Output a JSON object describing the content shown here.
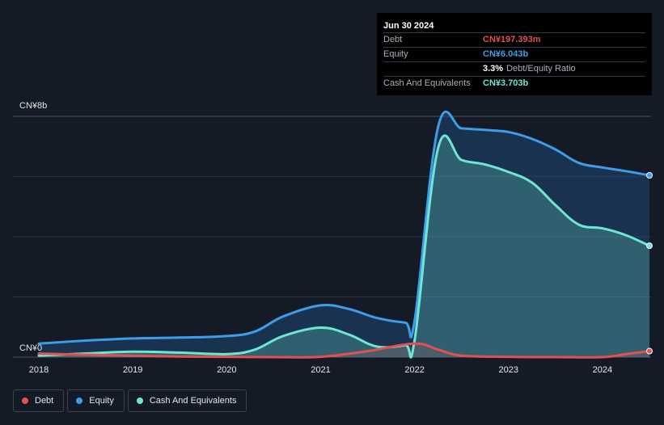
{
  "tooltip": {
    "date": "Jun 30 2024",
    "rows": [
      {
        "label": "Debt",
        "value": "CN¥197.393m",
        "color": "#e64f4f"
      },
      {
        "label": "Equity",
        "value": "CN¥6.043b",
        "color": "#3d9de8"
      }
    ],
    "ratio": {
      "value": "3.3%",
      "label": "Debt/Equity Ratio"
    },
    "cash": {
      "label": "Cash And Equivalents",
      "value": "CN¥3.703b",
      "color": "#6ee6d2"
    }
  },
  "axis": {
    "y_top_label": "CN¥8b",
    "y_zero_label": "CN¥0"
  },
  "legend": [
    {
      "label": "Debt",
      "color": "#e64f4f"
    },
    {
      "label": "Equity",
      "color": "#3d9de8"
    },
    {
      "label": "Cash And Equivalents",
      "color": "#6ee6d2"
    }
  ],
  "chart_data": {
    "type": "area",
    "x_ticks": [
      "2018",
      "2019",
      "2020",
      "2021",
      "2022",
      "2023",
      "2024"
    ],
    "ylim": [
      0,
      8
    ],
    "yunit": "CN¥ billions",
    "grid": true,
    "series": [
      {
        "name": "Equity",
        "color": "#3d9de8",
        "points": [
          [
            2018.0,
            0.45
          ],
          [
            2018.5,
            0.55
          ],
          [
            2019.0,
            0.62
          ],
          [
            2019.5,
            0.65
          ],
          [
            2020.0,
            0.7
          ],
          [
            2020.3,
            0.85
          ],
          [
            2020.6,
            1.35
          ],
          [
            2021.0,
            1.72
          ],
          [
            2021.3,
            1.6
          ],
          [
            2021.6,
            1.3
          ],
          [
            2021.9,
            1.15
          ],
          [
            2022.0,
            1.2
          ],
          [
            2022.25,
            7.65
          ],
          [
            2022.5,
            7.6
          ],
          [
            2022.75,
            7.55
          ],
          [
            2023.0,
            7.48
          ],
          [
            2023.25,
            7.25
          ],
          [
            2023.5,
            6.9
          ],
          [
            2023.75,
            6.45
          ],
          [
            2024.0,
            6.3
          ],
          [
            2024.25,
            6.18
          ],
          [
            2024.5,
            6.04
          ]
        ]
      },
      {
        "name": "Cash And Equivalents",
        "color": "#6ee6d2",
        "points": [
          [
            2018.0,
            0.05
          ],
          [
            2018.5,
            0.12
          ],
          [
            2019.0,
            0.18
          ],
          [
            2019.5,
            0.15
          ],
          [
            2020.0,
            0.1
          ],
          [
            2020.3,
            0.25
          ],
          [
            2020.6,
            0.7
          ],
          [
            2021.0,
            0.98
          ],
          [
            2021.3,
            0.75
          ],
          [
            2021.6,
            0.35
          ],
          [
            2021.9,
            0.4
          ],
          [
            2022.0,
            0.55
          ],
          [
            2022.25,
            6.95
          ],
          [
            2022.5,
            6.55
          ],
          [
            2022.75,
            6.4
          ],
          [
            2023.0,
            6.15
          ],
          [
            2023.25,
            5.8
          ],
          [
            2023.5,
            5.05
          ],
          [
            2023.75,
            4.4
          ],
          [
            2024.0,
            4.28
          ],
          [
            2024.25,
            4.05
          ],
          [
            2024.5,
            3.7
          ]
        ]
      },
      {
        "name": "Debt",
        "color": "#e64f4f",
        "points": [
          [
            2018.0,
            0.12
          ],
          [
            2018.5,
            0.08
          ],
          [
            2019.0,
            0.05
          ],
          [
            2019.5,
            0.02
          ],
          [
            2020.0,
            0.01
          ],
          [
            2020.5,
            0.0
          ],
          [
            2021.0,
            0.01
          ],
          [
            2021.5,
            0.2
          ],
          [
            2022.0,
            0.45
          ],
          [
            2022.25,
            0.25
          ],
          [
            2022.5,
            0.05
          ],
          [
            2023.0,
            0.01
          ],
          [
            2023.5,
            0.0
          ],
          [
            2024.0,
            0.0
          ],
          [
            2024.25,
            0.1
          ],
          [
            2024.5,
            0.2
          ]
        ]
      }
    ]
  }
}
